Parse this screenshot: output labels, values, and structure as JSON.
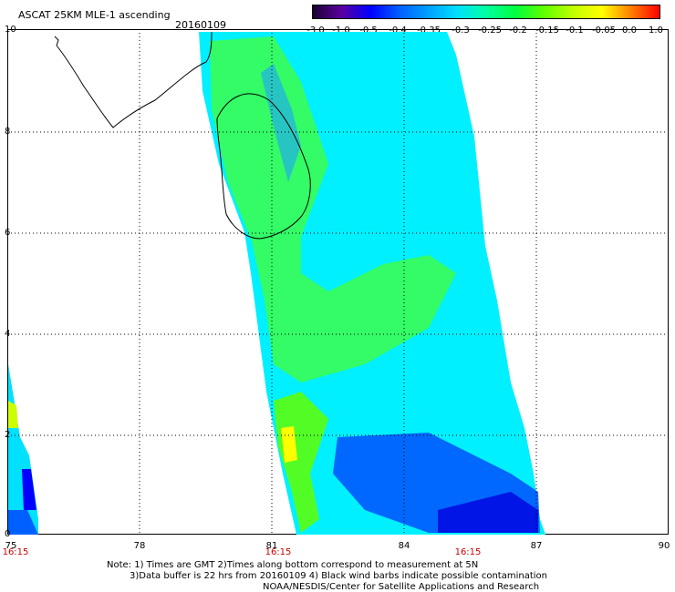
{
  "title": "ASCAT 25KM MLE-1 ascending",
  "date": "20160109",
  "colorbar": {
    "labels": [
      "-3.0",
      "-1.0",
      "-0.5",
      "-0.4",
      "-0.35",
      "-0.3",
      "-0.25",
      "-0.2",
      "-0.15",
      "-0.1",
      "-0.05",
      "0.0",
      "1.0"
    ],
    "colors": [
      "#1a0033",
      "#5a00a0",
      "#0000ff",
      "#0060ff",
      "#00a0ff",
      "#00e0ff",
      "#00ffa0",
      "#00ff40",
      "#60ff00",
      "#c0ff00",
      "#ffff00",
      "#ff8000",
      "#ff0000"
    ]
  },
  "axes": {
    "x_labels": [
      "75",
      "78",
      "81",
      "84",
      "87",
      "90"
    ],
    "y_labels": [
      "0",
      "2",
      "4",
      "6",
      "8",
      "10"
    ],
    "time_labels": [
      "16:15",
      "16:15",
      "16:15"
    ]
  },
  "notes": {
    "line1": "Note: 1) Times are GMT 2)Times along bottom correspond to measurement at 5N",
    "line2": "3)Data buffer is 22 hrs from 20160109 4) Black wind barbs indicate possible contamination",
    "line3": "NOAA/NESDIS/Center for Satellite Applications and Research"
  }
}
